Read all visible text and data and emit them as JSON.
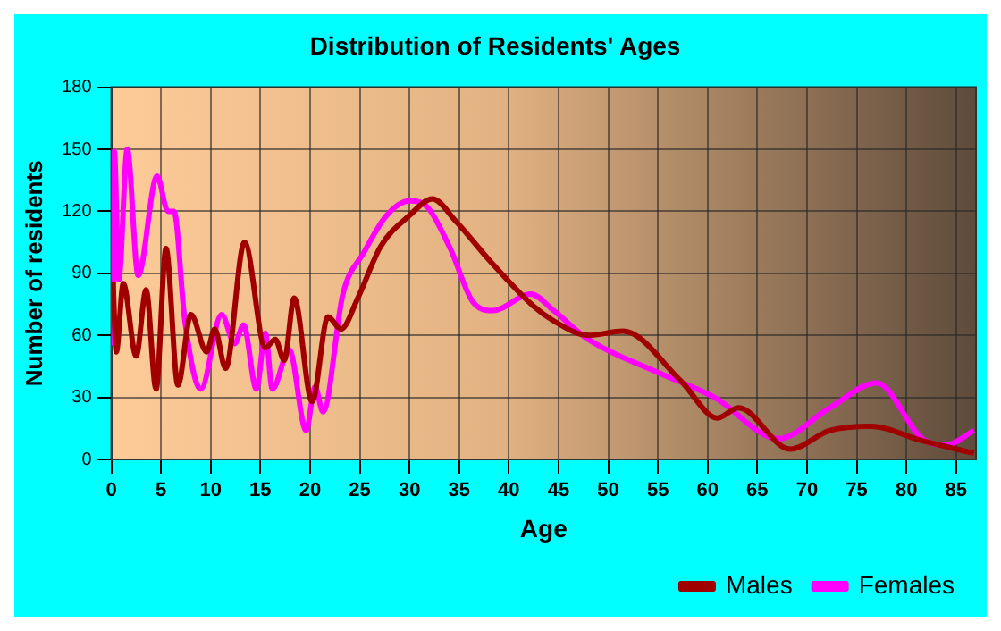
{
  "chart_data": {
    "type": "line",
    "title": "Distribution of Residents' Ages",
    "xlabel": "Age",
    "ylabel": "Number of residents",
    "xlim": [
      0,
      87
    ],
    "xticks": [
      0,
      5,
      10,
      15,
      20,
      25,
      30,
      35,
      40,
      45,
      50,
      55,
      60,
      65,
      70,
      75,
      80,
      85
    ],
    "ylim": [
      0,
      180
    ],
    "yticks": [
      0,
      30,
      60,
      90,
      120,
      150,
      180
    ],
    "grid": true,
    "legend": "bottom right",
    "marker": "none",
    "line_style": "solid",
    "series": [
      {
        "name": "Males",
        "color": "#a00000",
        "x": [
          0.17,
          0.5,
          1.2,
          2.5,
          3.5,
          4.5,
          5.5,
          6.7,
          8,
          9.6,
          10.4,
          11.5,
          13.4,
          15.5,
          16.5,
          17.4,
          18.4,
          20.2,
          21.8,
          23.1,
          24.8,
          27.1,
          30,
          32.3,
          34.7,
          38.1,
          42.5,
          44.5,
          48,
          51.5,
          57.3,
          61,
          63.1,
          68.3,
          72.3,
          76.4,
          81.6,
          86.8
        ],
        "values": [
          86,
          52,
          85,
          50,
          82,
          34,
          102,
          36,
          70,
          52,
          63,
          44,
          105,
          54,
          58,
          48,
          78,
          28,
          69,
          63,
          78,
          103,
          118,
          126,
          115,
          96,
          74,
          67,
          60,
          62,
          38,
          20,
          25,
          5,
          14,
          16,
          9,
          3
        ]
      },
      {
        "name": "Females",
        "color": "#ff00ff",
        "x": [
          0.17,
          0.3,
          0.75,
          1.6,
          2.7,
          4.6,
          5.7,
          6.3,
          7.4,
          9,
          11.1,
          12.4,
          13.3,
          14.6,
          15.5,
          16.2,
          17.9,
          19.6,
          20.5,
          21.3,
          23.3,
          25.4,
          27.7,
          30,
          31.8,
          34.1,
          36.4,
          38.4,
          42.2,
          44.5,
          48,
          55,
          60.7,
          67.1,
          72.3,
          77,
          81.6,
          84,
          86.8
        ],
        "values": [
          55,
          149,
          87,
          150,
          89,
          137,
          120,
          120,
          67,
          34,
          70,
          56,
          65,
          34,
          61,
          34,
          53,
          14,
          35,
          23,
          80,
          100,
          118,
          125,
          122,
          102,
          76,
          72,
          80,
          72,
          58,
          42,
          30,
          10,
          25,
          37,
          10,
          7,
          14
        ]
      }
    ]
  }
}
